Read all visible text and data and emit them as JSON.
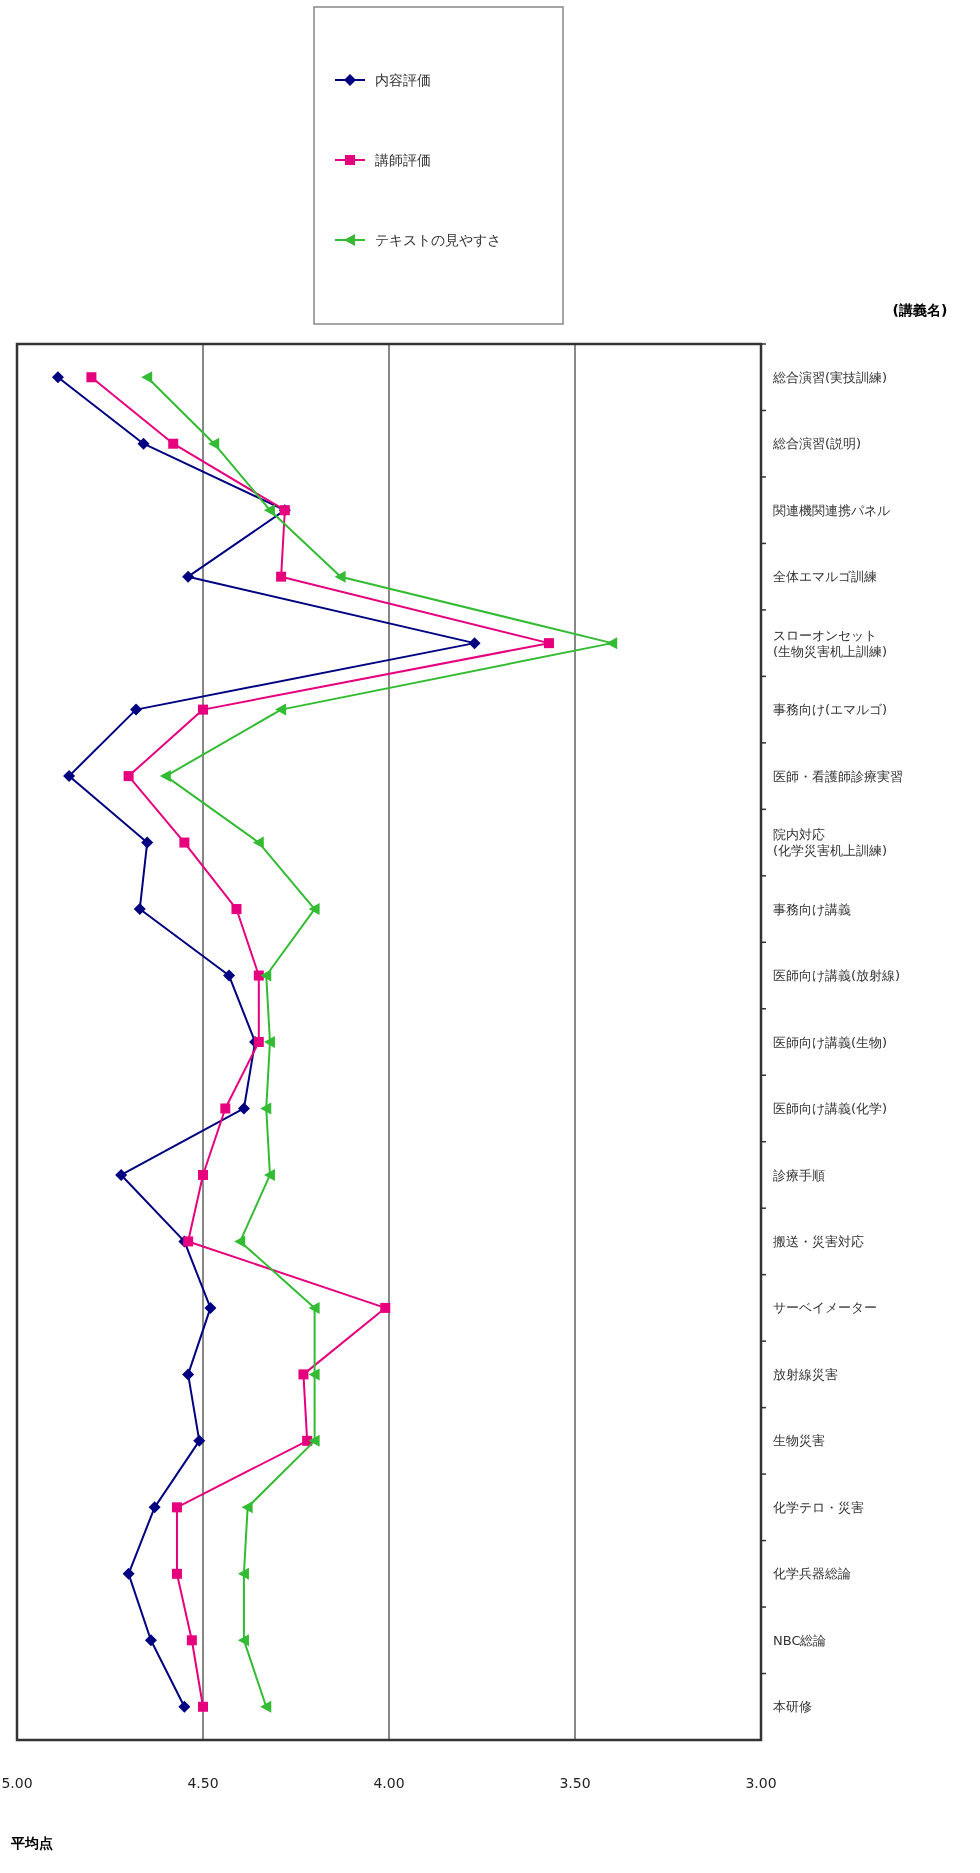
{
  "chart_data": {
    "type": "line",
    "orientation": "horizontal",
    "xlabel": "平均点",
    "ylabel": "(講義名)",
    "categories": [
      "総合演習(実技訓練)",
      "総合演習(説明)",
      "関連機関連携パネル",
      "全体エマルゴ訓練",
      "スローオンセット\n(生物災害机上訓練)",
      "事務向け(エマルゴ)",
      "医師・看護師診療実習",
      "院内対応\n(化学災害机上訓練)",
      "事務向け講義",
      "医師向け講義(放射線)",
      "医師向け講義(生物)",
      "医師向け講義(化学)",
      "診療手順",
      "搬送・災害対応",
      "サーベイメーター",
      "放射線災害",
      "生物災害",
      "化学テロ・災害",
      "化学兵器総論",
      "NBC総論",
      "本研修"
    ],
    "series": [
      {
        "name": "内容評価",
        "color": "#000080",
        "marker": "diamond",
        "values": [
          4.89,
          4.66,
          4.28,
          4.54,
          3.77,
          4.68,
          4.86,
          4.65,
          4.67,
          4.43,
          4.36,
          4.39,
          4.72,
          4.55,
          4.48,
          4.54,
          4.51,
          4.63,
          4.7,
          4.64,
          4.55
        ]
      },
      {
        "name": "講師評価",
        "color": "#e6007e",
        "marker": "square",
        "values": [
          4.8,
          4.58,
          4.28,
          4.29,
          3.57,
          4.5,
          4.7,
          4.55,
          4.41,
          4.35,
          4.35,
          4.44,
          4.5,
          4.54,
          4.01,
          4.23,
          4.22,
          4.57,
          4.57,
          4.53,
          4.5
        ]
      },
      {
        "name": "テキストの見やすさ",
        "color": "#33bb33",
        "marker": "triangle",
        "values": [
          4.65,
          4.47,
          4.32,
          4.13,
          3.4,
          4.29,
          4.6,
          4.35,
          4.2,
          4.33,
          4.32,
          4.33,
          4.32,
          4.4,
          4.2,
          4.2,
          4.2,
          4.38,
          4.39,
          4.39,
          4.33
        ]
      }
    ],
    "xlim": [
      5,
      3
    ],
    "xticks": [
      {
        "value": 5,
        "label": "5.00"
      },
      {
        "value": 4.5,
        "label": "4.50"
      },
      {
        "value": 4,
        "label": "4.00"
      },
      {
        "value": 3.5,
        "label": "3.50"
      },
      {
        "value": 3,
        "label": "3.00"
      }
    ],
    "grid": "x",
    "legend": "top right"
  }
}
